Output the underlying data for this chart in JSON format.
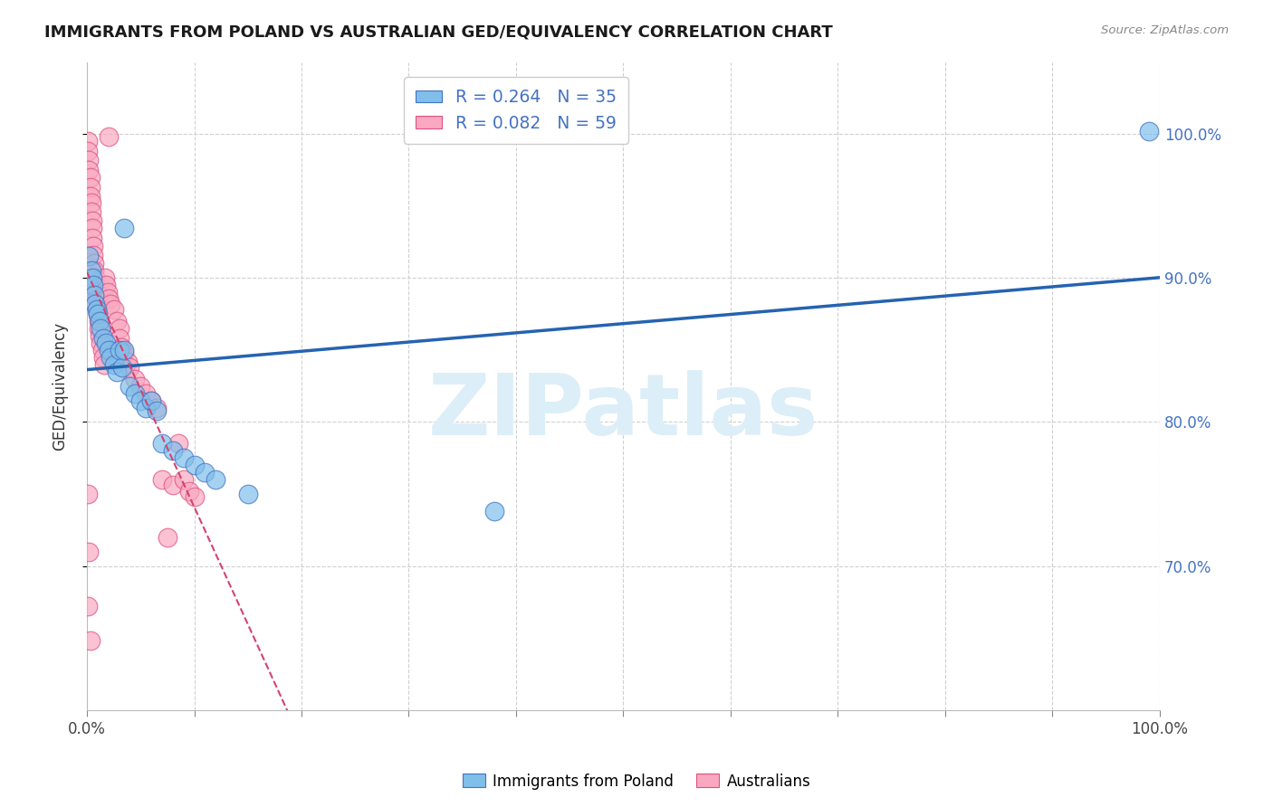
{
  "title": "IMMIGRANTS FROM POLAND VS AUSTRALIAN GED/EQUIVALENCY CORRELATION CHART",
  "source": "Source: ZipAtlas.com",
  "ylabel": "GED/Equivalency",
  "r_blue": 0.264,
  "n_blue": 35,
  "r_pink": 0.082,
  "n_pink": 59,
  "blue_color": "#7fbfea",
  "pink_color": "#f9a8c0",
  "blue_edge_color": "#4472c4",
  "pink_edge_color": "#e05080",
  "blue_line_color": "#2563b0",
  "pink_line_color": "#d4436e",
  "blue_scatter_x": [
    0.002,
    0.004,
    0.005,
    0.006,
    0.007,
    0.008,
    0.009,
    0.01,
    0.012,
    0.013,
    0.015,
    0.018,
    0.02,
    0.022,
    0.025,
    0.028,
    0.03,
    0.033,
    0.035,
    0.04,
    0.045,
    0.05,
    0.055,
    0.06,
    0.065,
    0.07,
    0.08,
    0.09,
    0.1,
    0.11,
    0.12,
    0.15,
    0.38,
    0.99,
    0.035
  ],
  "blue_scatter_y": [
    0.915,
    0.905,
    0.9,
    0.895,
    0.888,
    0.882,
    0.878,
    0.875,
    0.87,
    0.865,
    0.858,
    0.855,
    0.85,
    0.845,
    0.84,
    0.835,
    0.85,
    0.838,
    0.935,
    0.825,
    0.82,
    0.815,
    0.81,
    0.815,
    0.808,
    0.785,
    0.78,
    0.775,
    0.77,
    0.765,
    0.76,
    0.75,
    0.738,
    1.002,
    0.85
  ],
  "pink_scatter_x": [
    0.001,
    0.001,
    0.002,
    0.002,
    0.003,
    0.003,
    0.003,
    0.004,
    0.004,
    0.005,
    0.005,
    0.005,
    0.006,
    0.006,
    0.007,
    0.007,
    0.008,
    0.008,
    0.009,
    0.009,
    0.01,
    0.01,
    0.011,
    0.011,
    0.012,
    0.013,
    0.014,
    0.015,
    0.016,
    0.017,
    0.018,
    0.019,
    0.02,
    0.022,
    0.025,
    0.028,
    0.03,
    0.03,
    0.032,
    0.035,
    0.038,
    0.04,
    0.045,
    0.05,
    0.055,
    0.06,
    0.065,
    0.07,
    0.075,
    0.08,
    0.085,
    0.09,
    0.095,
    0.1,
    0.001,
    0.002,
    0.02,
    0.001,
    0.003
  ],
  "pink_scatter_y": [
    0.995,
    0.988,
    0.982,
    0.975,
    0.97,
    0.963,
    0.957,
    0.952,
    0.946,
    0.94,
    0.935,
    0.928,
    0.922,
    0.916,
    0.91,
    0.905,
    0.9,
    0.895,
    0.89,
    0.885,
    0.88,
    0.875,
    0.87,
    0.865,
    0.86,
    0.855,
    0.85,
    0.845,
    0.84,
    0.9,
    0.895,
    0.89,
    0.886,
    0.882,
    0.878,
    0.87,
    0.865,
    0.858,
    0.852,
    0.848,
    0.842,
    0.838,
    0.83,
    0.825,
    0.82,
    0.815,
    0.81,
    0.76,
    0.72,
    0.756,
    0.785,
    0.76,
    0.752,
    0.748,
    0.75,
    0.71,
    0.998,
    0.672,
    0.648
  ],
  "xlim": [
    0.0,
    1.0
  ],
  "ylim": [
    0.6,
    1.05
  ],
  "yticks": [
    0.7,
    0.8,
    0.9,
    1.0
  ],
  "ytick_labels": [
    "70.0%",
    "80.0%",
    "90.0%",
    "100.0%"
  ],
  "legend_label_blue": "Immigrants from Poland",
  "legend_label_pink": "Australians",
  "watermark_text": "ZIPatlas",
  "watermark_color": "#dceef8",
  "background_color": "#ffffff",
  "grid_color": "#d0d0d0"
}
